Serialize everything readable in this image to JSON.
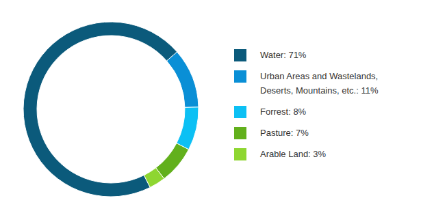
{
  "chart_data": {
    "type": "pie",
    "categories": [
      "Water: 71%",
      "Urban Areas and Wastelands, Deserts, Mountains, etc.: 11%",
      "Forrest: 8%",
      "Pasture: 7%",
      "Arable Land: 3%"
    ],
    "values": [
      71,
      11,
      8,
      7,
      3
    ],
    "colors": [
      "#0b5a7b",
      "#0a8fd6",
      "#0cc0f4",
      "#62b01c",
      "#8ed631"
    ],
    "legend": "right"
  }
}
